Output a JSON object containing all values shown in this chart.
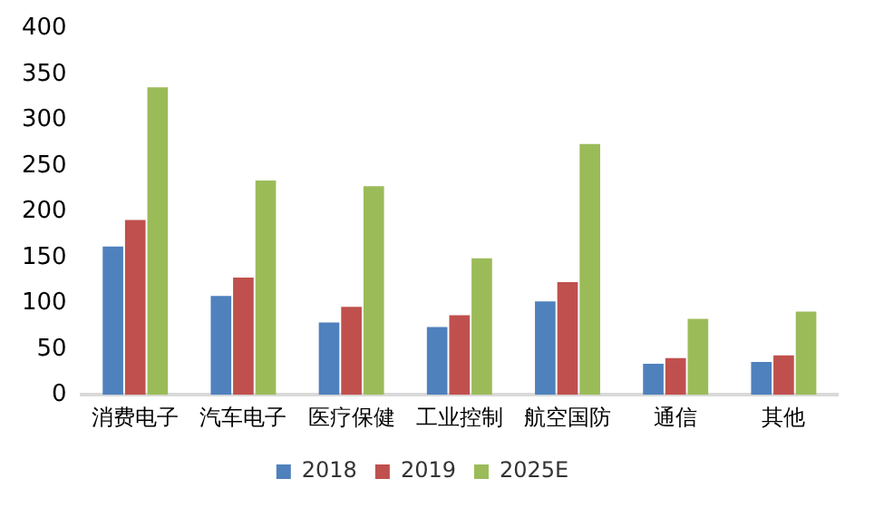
{
  "chart_data": {
    "type": "bar",
    "categories": [
      "消费电子",
      "汽车电子",
      "医疗保健",
      "工业控制",
      "航空国防",
      "通信",
      "其他"
    ],
    "series": [
      {
        "name": "2018",
        "color": "#4f81bd",
        "values": [
          162,
          108,
          79,
          74,
          102,
          34,
          36
        ]
      },
      {
        "name": "2019",
        "color": "#c0504d",
        "values": [
          191,
          128,
          96,
          87,
          123,
          40,
          43
        ]
      },
      {
        "name": "2025E",
        "color": "#9bbb59",
        "values": [
          336,
          234,
          228,
          149,
          274,
          83,
          91
        ]
      }
    ],
    "ylim": [
      0,
      400
    ],
    "yticks": [
      0,
      50,
      100,
      150,
      200,
      250,
      300,
      350,
      400
    ],
    "grid": false,
    "legend": "bottom"
  }
}
